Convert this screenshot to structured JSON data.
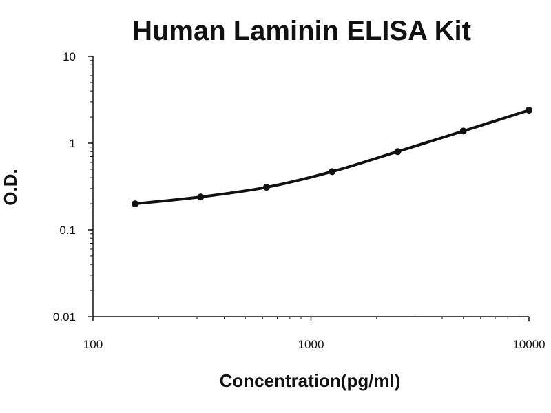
{
  "chart_data": {
    "type": "line",
    "title": "Human Laminin ELISA Kit",
    "xlabel": "Concentration(pg/ml)",
    "ylabel": "O.D.",
    "x_scale": "log",
    "y_scale": "log",
    "xlim": [
      100,
      10000
    ],
    "ylim": [
      0.01,
      10
    ],
    "x_ticks": [
      "100",
      "1000",
      "10000"
    ],
    "y_ticks": [
      "10",
      "1",
      "0.1",
      "0.01"
    ],
    "grid": false,
    "legend": "none",
    "series": [
      {
        "x": [
          156,
          312,
          625,
          1250,
          2500,
          5000,
          10000
        ],
        "y": [
          0.2,
          0.24,
          0.31,
          0.47,
          0.8,
          1.38,
          2.4
        ]
      }
    ],
    "colors": {
      "line": "#111111",
      "axis": "#111111",
      "text": "#111111"
    }
  }
}
